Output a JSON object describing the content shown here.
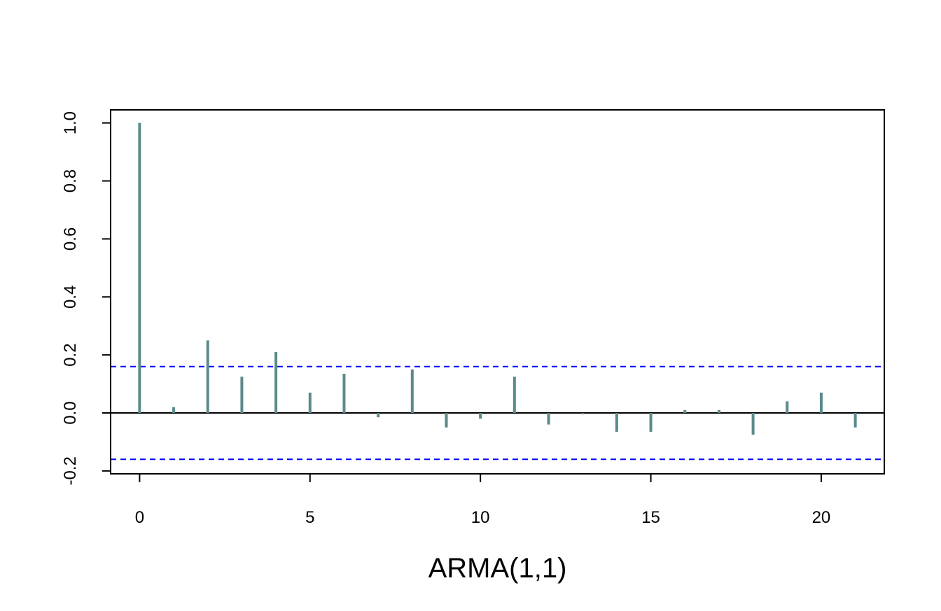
{
  "chart_data": {
    "type": "bar",
    "title": "",
    "xlabel": "ARMA(1,1)",
    "ylabel": "",
    "x": [
      0,
      1,
      2,
      3,
      4,
      5,
      6,
      7,
      8,
      9,
      10,
      11,
      12,
      13,
      14,
      15,
      16,
      17,
      18,
      19,
      20,
      21
    ],
    "values": [
      1.0,
      0.02,
      0.25,
      0.125,
      0.21,
      0.07,
      0.135,
      -0.015,
      0.15,
      -0.05,
      -0.02,
      0.125,
      -0.04,
      -0.005,
      -0.065,
      -0.065,
      0.01,
      0.01,
      -0.075,
      0.04,
      0.07,
      -0.05
    ],
    "confidence_bounds": [
      0.16,
      -0.16
    ],
    "xlim": [
      -0.85,
      21.85
    ],
    "ylim": [
      -0.21,
      1.045
    ],
    "x_ticks": [
      0,
      5,
      10,
      15,
      20
    ],
    "x_tick_labels": [
      "0",
      "5",
      "10",
      "15",
      "20"
    ],
    "y_ticks": [
      -0.2,
      0.0,
      0.2,
      0.4,
      0.6,
      0.8,
      1.0
    ],
    "y_tick_labels": [
      "-0.2",
      "0.0",
      "0.2",
      "0.4",
      "0.6",
      "0.8",
      "1.0"
    ],
    "grid": false,
    "legend": "none",
    "colors": {
      "bars": "#5b8a8a",
      "bounds": "#0000ff",
      "zero_line": "#000000",
      "frame": "#000000"
    }
  }
}
